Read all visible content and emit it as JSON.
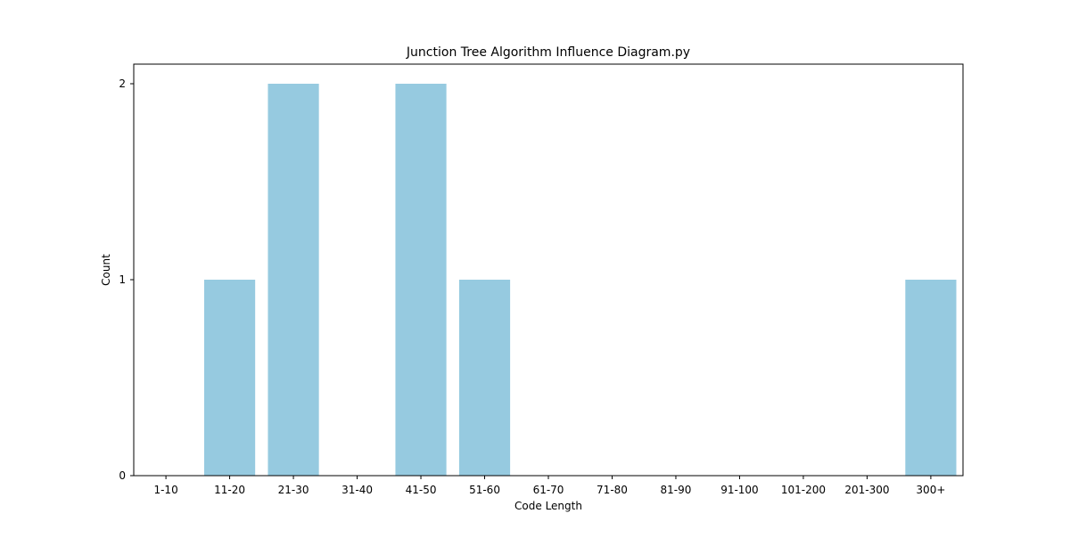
{
  "chart_data": {
    "type": "bar",
    "title": "Junction Tree Algorithm Influence Diagram.py",
    "xlabel": "Code Length",
    "ylabel": "Count",
    "categories": [
      "1-10",
      "11-20",
      "21-30",
      "31-40",
      "41-50",
      "51-60",
      "61-70",
      "71-80",
      "81-90",
      "91-100",
      "101-200",
      "201-300",
      "300+"
    ],
    "values": [
      0,
      1,
      2,
      0,
      2,
      1,
      0,
      0,
      0,
      0,
      0,
      0,
      1
    ],
    "ylim": [
      0,
      2.1
    ],
    "yticks": [
      0,
      1,
      2
    ],
    "bar_color": "#96CAE0",
    "grid": false,
    "legend": "none"
  }
}
